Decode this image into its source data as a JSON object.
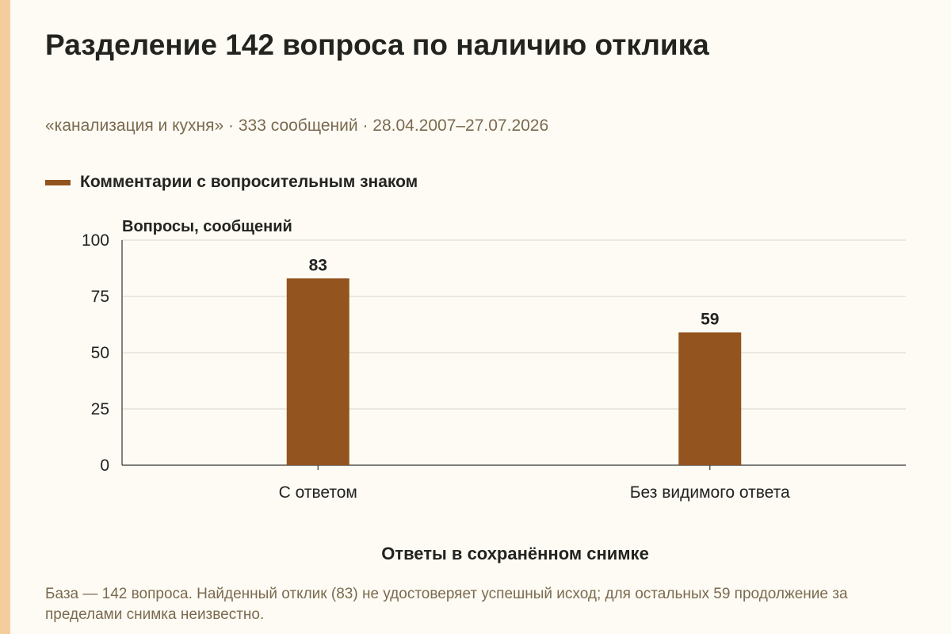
{
  "title": "Разделение 142 вопроса по наличию отклика",
  "subtitle": "«канализация и кухня» · 333 сообщений · 28.04.2007–27.07.2026",
  "legend_label": "Комментарии с вопросительным знаком",
  "footnote": "База — 142 вопроса. Найденный отклик (83) не удостоверяет успешный исход; для остальных 59 продолжение за пределами снимка неизвестно.",
  "colors": {
    "bar": "#93541f",
    "accent_stripe": "#f4cd9c",
    "background": "#fdfbf4",
    "grid": "#dad6cc",
    "axis": "#333333"
  },
  "chart_data": {
    "type": "bar",
    "categories": [
      "С ответом",
      "Без видимого ответа"
    ],
    "series": [
      {
        "name": "Комментарии с вопросительным знаком",
        "values": [
          83,
          59
        ]
      }
    ],
    "data_labels": [
      "83",
      "59"
    ],
    "ylabel": "Вопросы, сообщений",
    "xlabel": "Ответы в сохранённом снимке",
    "ylim": [
      0,
      100
    ],
    "yticks": [
      0,
      25,
      50,
      75,
      100
    ],
    "ytick_labels": [
      "0",
      "25",
      "50",
      "75",
      "100"
    ],
    "grid": true,
    "legend_position": "top-left"
  }
}
